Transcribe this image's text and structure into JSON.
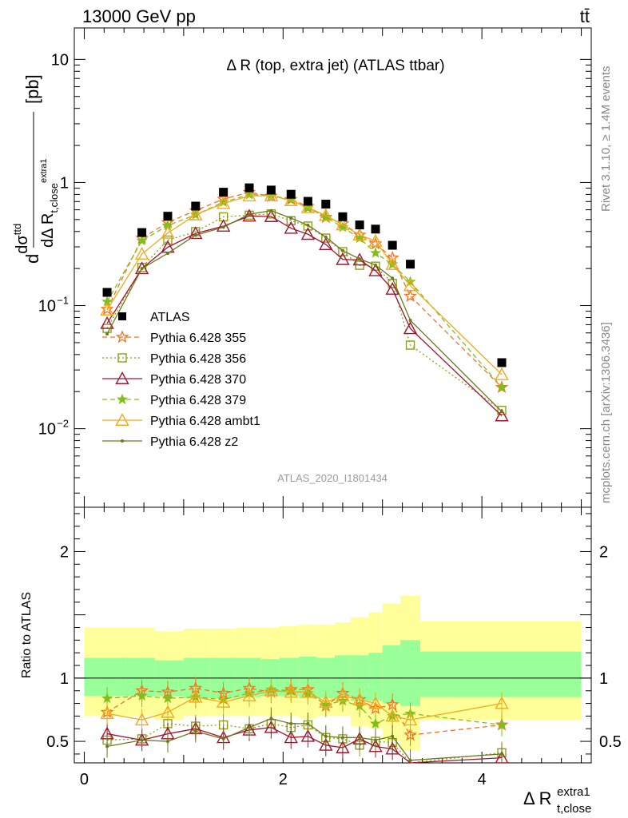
{
  "header": {
    "energy": "13000 GeV pp",
    "process": "tt̄",
    "plot_title": "Δ R (top, extra jet) (ATLAS ttbar)",
    "analysis_id": "ATLAS_2020_I1801434",
    "rivet_label": "Rivet 3.1.10, ≥ 1.4M events",
    "site_label": "mcplots.cern.ch [arXiv:1306.3436]"
  },
  "axes": {
    "main_ylabel_prefix": "d",
    "main_ylabel_dsigma": "dσ",
    "main_ylabel_sup": "ttd",
    "main_ylabel_den": "dΔ R",
    "main_ylabel_den_sub": "t,close",
    "main_ylabel_den_sup": "extra1",
    "main_ylabel_unit": "[pb]",
    "ratio_ylabel": "Ratio to ATLAS",
    "xlabel_main": "Δ R",
    "xlabel_sup": "extra1",
    "xlabel_sub": "t,close",
    "main_yticks": [
      {
        "value": 10,
        "label": "10"
      },
      {
        "value": 1,
        "label": "1"
      },
      {
        "value": 0.1,
        "label": "10",
        "sup": "−1"
      },
      {
        "value": 0.01,
        "label": "10",
        "sup": "−2"
      }
    ],
    "ratio_yticks": [
      {
        "value": 2,
        "label": "2"
      },
      {
        "value": 1,
        "label": "1"
      },
      {
        "value": 0.5,
        "label": "0.5"
      }
    ],
    "xticks": [
      {
        "value": 0,
        "label": "0"
      },
      {
        "value": 2,
        "label": "2"
      },
      {
        "value": 4,
        "label": "4"
      }
    ]
  },
  "chart_data": {
    "type": "scatter",
    "x_range": [
      -0.1,
      5.1
    ],
    "main_y_range": [
      0.0023,
      18
    ],
    "main_y_scale": "log",
    "ratio_y_range": [
      0.33,
      2.35
    ],
    "legend_position": "middle-left",
    "data_series": {
      "name": "ATLAS",
      "x": [
        0.23,
        0.58,
        0.84,
        1.12,
        1.4,
        1.66,
        1.88,
        2.08,
        2.25,
        2.43,
        2.6,
        2.77,
        2.93,
        3.1,
        3.28,
        4.2
      ],
      "y": [
        0.128,
        0.392,
        0.532,
        0.643,
        0.834,
        0.905,
        0.868,
        0.802,
        0.703,
        0.667,
        0.527,
        0.452,
        0.418,
        0.309,
        0.217,
        0.0344
      ]
    },
    "bands": {
      "edges": [
        0.0,
        0.42,
        0.71,
        1.0,
        1.26,
        1.52,
        1.78,
        1.96,
        2.16,
        2.34,
        2.52,
        2.68,
        2.86,
        3.0,
        3.18,
        3.38,
        5.0
      ],
      "green_lo": [
        0.86,
        0.86,
        0.86,
        0.84,
        0.84,
        0.85,
        0.86,
        0.86,
        0.84,
        0.84,
        0.84,
        0.82,
        0.82,
        0.8,
        0.78,
        0.85
      ],
      "green_hi": [
        1.16,
        1.16,
        1.14,
        1.16,
        1.16,
        1.16,
        1.15,
        1.16,
        1.17,
        1.16,
        1.18,
        1.18,
        1.2,
        1.26,
        1.3,
        1.21
      ],
      "yellow_lo": [
        0.7,
        0.7,
        0.67,
        0.7,
        0.7,
        0.7,
        0.7,
        0.7,
        0.68,
        0.7,
        0.7,
        0.62,
        0.6,
        0.5,
        0.43,
        0.67
      ],
      "yellow_hi": [
        1.4,
        1.4,
        1.37,
        1.39,
        1.39,
        1.4,
        1.4,
        1.41,
        1.42,
        1.42,
        1.44,
        1.48,
        1.52,
        1.59,
        1.65,
        1.45
      ]
    },
    "series": [
      {
        "name": "Pythia 6.428 355",
        "color": "#ff6d1c",
        "marker": "star-open",
        "dash": "dashed",
        "ratio": [
          0.73,
          0.9,
          0.89,
          0.92,
          0.88,
          0.92,
          0.89,
          0.91,
          0.91,
          0.78,
          0.88,
          0.83,
          0.76,
          0.79,
          0.55,
          0.63
        ]
      },
      {
        "name": "Pythia 6.428 356",
        "color": "#8b9f1c",
        "marker": "square-open",
        "dash": "dotted",
        "ratio": [
          0.51,
          0.52,
          0.64,
          0.62,
          0.63,
          0.6,
          0.64,
          0.61,
          0.63,
          0.53,
          0.52,
          0.47,
          0.5,
          0.49,
          0.22,
          0.41
        ]
      },
      {
        "name": "Pythia 6.428 370",
        "color": "#a2142f",
        "marker": "triangle-open",
        "dash": "solid",
        "ratio": [
          0.56,
          0.51,
          0.56,
          0.6,
          0.53,
          0.59,
          0.61,
          0.53,
          0.54,
          0.47,
          0.45,
          0.52,
          0.46,
          0.44,
          0.3,
          0.37
        ]
      },
      {
        "name": "Pythia 6.428 379",
        "color": "#7fbf1c",
        "marker": "star-filled",
        "dash": "dashed",
        "ratio": [
          0.84,
          0.86,
          0.84,
          0.85,
          0.83,
          0.88,
          0.91,
          0.9,
          0.88,
          0.79,
          0.82,
          0.78,
          0.64,
          0.7,
          0.72,
          0.63
        ]
      },
      {
        "name": "Pythia 6.428 ambt1",
        "color": "#f4a81c",
        "marker": "triangle-open",
        "dash": "solid",
        "ratio": [
          0.72,
          0.67,
          0.73,
          0.85,
          0.81,
          0.86,
          0.9,
          0.89,
          0.89,
          0.81,
          0.86,
          0.83,
          0.8,
          0.7,
          0.67,
          0.8
        ]
      },
      {
        "name": "Pythia 6.428 z2",
        "color": "#6b7a1a",
        "marker": "dot",
        "dash": "solid",
        "ratio": [
          0.46,
          0.51,
          0.5,
          0.58,
          0.52,
          0.61,
          0.68,
          0.64,
          0.64,
          0.54,
          0.53,
          0.53,
          0.51,
          0.54,
          0.35,
          0.4
        ]
      }
    ]
  }
}
